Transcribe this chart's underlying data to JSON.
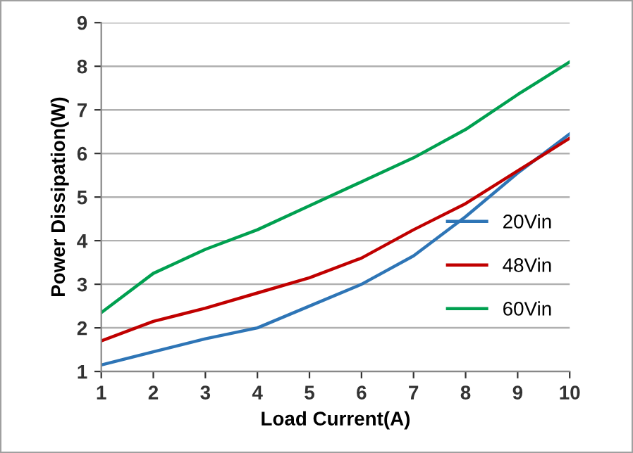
{
  "chart_data": {
    "type": "line",
    "xlabel": "Load Current(A)",
    "ylabel": "Power Dissipation(W)",
    "x": [
      1,
      2,
      3,
      4,
      5,
      6,
      7,
      8,
      9,
      10
    ],
    "series": [
      {
        "name": "20Vin",
        "color": "#2e75b6",
        "values": [
          1.15,
          1.45,
          1.75,
          2.0,
          2.5,
          3.0,
          3.65,
          4.55,
          5.55,
          6.45
        ]
      },
      {
        "name": "48Vin",
        "color": "#c00000",
        "values": [
          1.7,
          2.15,
          2.45,
          2.8,
          3.15,
          3.6,
          4.25,
          4.85,
          5.6,
          6.35
        ]
      },
      {
        "name": "60Vin",
        "color": "#00a050",
        "values": [
          2.35,
          3.25,
          3.8,
          4.25,
          4.8,
          5.35,
          5.9,
          6.55,
          7.35,
          8.1
        ]
      }
    ],
    "xlim": [
      1,
      10
    ],
    "ylim": [
      1,
      9
    ],
    "xticks": [
      1,
      2,
      3,
      4,
      5,
      6,
      7,
      8,
      9,
      10
    ],
    "yticks": [
      1,
      2,
      3,
      4,
      5,
      6,
      7,
      8,
      9
    ],
    "grid": "y",
    "legend": "center right",
    "marker": "none",
    "line_style": "solid"
  }
}
